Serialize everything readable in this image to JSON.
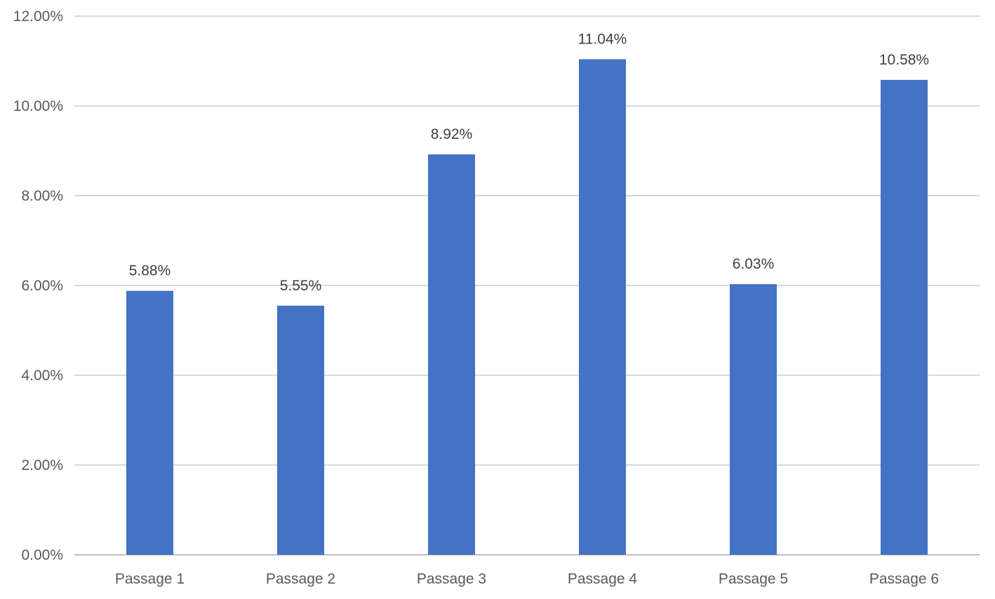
{
  "chart_data": {
    "type": "bar",
    "title": "",
    "xlabel": "",
    "ylabel": "",
    "categories": [
      "Passage 1",
      "Passage 2",
      "Passage 3",
      "Passage 4",
      "Passage 5",
      "Passage 6"
    ],
    "values": [
      5.88,
      5.55,
      8.92,
      11.04,
      6.03,
      10.58
    ],
    "data_labels": [
      "5.88%",
      "5.55%",
      "8.92%",
      "11.04%",
      "6.03%",
      "10.58%"
    ],
    "ylim": [
      0,
      12
    ],
    "yticks": [
      0,
      2,
      4,
      6,
      8,
      10,
      12
    ],
    "ytick_labels": [
      "0.00%",
      "2.00%",
      "4.00%",
      "6.00%",
      "8.00%",
      "10.00%",
      "12.00%"
    ],
    "grid": true,
    "legend": "none",
    "colors": {
      "bar": "#4472C4",
      "grid": "#D9D9D9",
      "axis": "#BFBFBF"
    }
  }
}
